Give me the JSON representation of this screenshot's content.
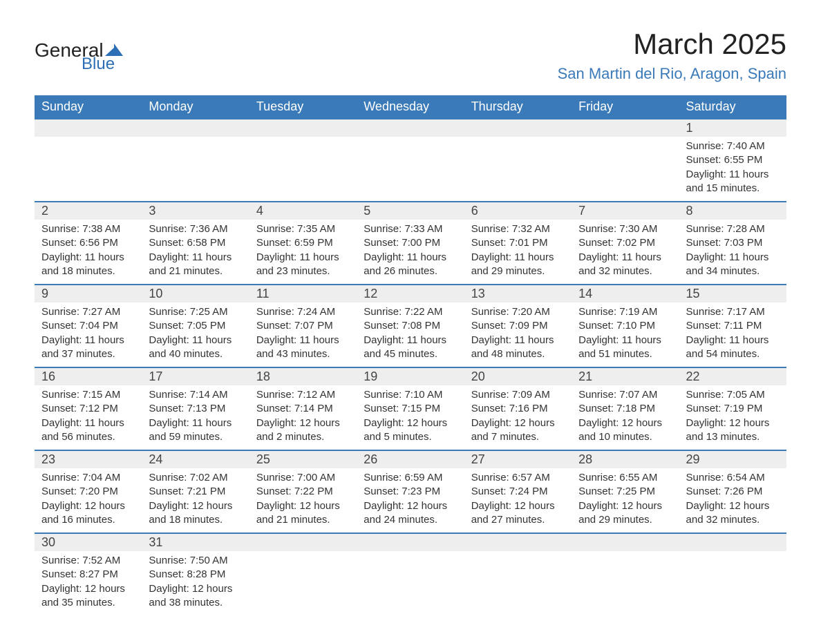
{
  "logo": {
    "word1": "General",
    "word2": "Blue",
    "shape_color": "#2d6fb5"
  },
  "title": "March 2025",
  "location": "San Martin del Rio, Aragon, Spain",
  "colors": {
    "header_bg": "#3a7ab8",
    "header_fg": "#ffffff",
    "daynum_bg": "#eeeeee",
    "row_divider": "#3a7ab8",
    "text": "#333333",
    "location_fg": "#3a7ab8"
  },
  "weekdays": [
    "Sunday",
    "Monday",
    "Tuesday",
    "Wednesday",
    "Thursday",
    "Friday",
    "Saturday"
  ],
  "weeks": [
    [
      null,
      null,
      null,
      null,
      null,
      null,
      {
        "n": "1",
        "sr": "Sunrise: 7:40 AM",
        "ss": "Sunset: 6:55 PM",
        "dl": "Daylight: 11 hours and 15 minutes."
      }
    ],
    [
      {
        "n": "2",
        "sr": "Sunrise: 7:38 AM",
        "ss": "Sunset: 6:56 PM",
        "dl": "Daylight: 11 hours and 18 minutes."
      },
      {
        "n": "3",
        "sr": "Sunrise: 7:36 AM",
        "ss": "Sunset: 6:58 PM",
        "dl": "Daylight: 11 hours and 21 minutes."
      },
      {
        "n": "4",
        "sr": "Sunrise: 7:35 AM",
        "ss": "Sunset: 6:59 PM",
        "dl": "Daylight: 11 hours and 23 minutes."
      },
      {
        "n": "5",
        "sr": "Sunrise: 7:33 AM",
        "ss": "Sunset: 7:00 PM",
        "dl": "Daylight: 11 hours and 26 minutes."
      },
      {
        "n": "6",
        "sr": "Sunrise: 7:32 AM",
        "ss": "Sunset: 7:01 PM",
        "dl": "Daylight: 11 hours and 29 minutes."
      },
      {
        "n": "7",
        "sr": "Sunrise: 7:30 AM",
        "ss": "Sunset: 7:02 PM",
        "dl": "Daylight: 11 hours and 32 minutes."
      },
      {
        "n": "8",
        "sr": "Sunrise: 7:28 AM",
        "ss": "Sunset: 7:03 PM",
        "dl": "Daylight: 11 hours and 34 minutes."
      }
    ],
    [
      {
        "n": "9",
        "sr": "Sunrise: 7:27 AM",
        "ss": "Sunset: 7:04 PM",
        "dl": "Daylight: 11 hours and 37 minutes."
      },
      {
        "n": "10",
        "sr": "Sunrise: 7:25 AM",
        "ss": "Sunset: 7:05 PM",
        "dl": "Daylight: 11 hours and 40 minutes."
      },
      {
        "n": "11",
        "sr": "Sunrise: 7:24 AM",
        "ss": "Sunset: 7:07 PM",
        "dl": "Daylight: 11 hours and 43 minutes."
      },
      {
        "n": "12",
        "sr": "Sunrise: 7:22 AM",
        "ss": "Sunset: 7:08 PM",
        "dl": "Daylight: 11 hours and 45 minutes."
      },
      {
        "n": "13",
        "sr": "Sunrise: 7:20 AM",
        "ss": "Sunset: 7:09 PM",
        "dl": "Daylight: 11 hours and 48 minutes."
      },
      {
        "n": "14",
        "sr": "Sunrise: 7:19 AM",
        "ss": "Sunset: 7:10 PM",
        "dl": "Daylight: 11 hours and 51 minutes."
      },
      {
        "n": "15",
        "sr": "Sunrise: 7:17 AM",
        "ss": "Sunset: 7:11 PM",
        "dl": "Daylight: 11 hours and 54 minutes."
      }
    ],
    [
      {
        "n": "16",
        "sr": "Sunrise: 7:15 AM",
        "ss": "Sunset: 7:12 PM",
        "dl": "Daylight: 11 hours and 56 minutes."
      },
      {
        "n": "17",
        "sr": "Sunrise: 7:14 AM",
        "ss": "Sunset: 7:13 PM",
        "dl": "Daylight: 11 hours and 59 minutes."
      },
      {
        "n": "18",
        "sr": "Sunrise: 7:12 AM",
        "ss": "Sunset: 7:14 PM",
        "dl": "Daylight: 12 hours and 2 minutes."
      },
      {
        "n": "19",
        "sr": "Sunrise: 7:10 AM",
        "ss": "Sunset: 7:15 PM",
        "dl": "Daylight: 12 hours and 5 minutes."
      },
      {
        "n": "20",
        "sr": "Sunrise: 7:09 AM",
        "ss": "Sunset: 7:16 PM",
        "dl": "Daylight: 12 hours and 7 minutes."
      },
      {
        "n": "21",
        "sr": "Sunrise: 7:07 AM",
        "ss": "Sunset: 7:18 PM",
        "dl": "Daylight: 12 hours and 10 minutes."
      },
      {
        "n": "22",
        "sr": "Sunrise: 7:05 AM",
        "ss": "Sunset: 7:19 PM",
        "dl": "Daylight: 12 hours and 13 minutes."
      }
    ],
    [
      {
        "n": "23",
        "sr": "Sunrise: 7:04 AM",
        "ss": "Sunset: 7:20 PM",
        "dl": "Daylight: 12 hours and 16 minutes."
      },
      {
        "n": "24",
        "sr": "Sunrise: 7:02 AM",
        "ss": "Sunset: 7:21 PM",
        "dl": "Daylight: 12 hours and 18 minutes."
      },
      {
        "n": "25",
        "sr": "Sunrise: 7:00 AM",
        "ss": "Sunset: 7:22 PM",
        "dl": "Daylight: 12 hours and 21 minutes."
      },
      {
        "n": "26",
        "sr": "Sunrise: 6:59 AM",
        "ss": "Sunset: 7:23 PM",
        "dl": "Daylight: 12 hours and 24 minutes."
      },
      {
        "n": "27",
        "sr": "Sunrise: 6:57 AM",
        "ss": "Sunset: 7:24 PM",
        "dl": "Daylight: 12 hours and 27 minutes."
      },
      {
        "n": "28",
        "sr": "Sunrise: 6:55 AM",
        "ss": "Sunset: 7:25 PM",
        "dl": "Daylight: 12 hours and 29 minutes."
      },
      {
        "n": "29",
        "sr": "Sunrise: 6:54 AM",
        "ss": "Sunset: 7:26 PM",
        "dl": "Daylight: 12 hours and 32 minutes."
      }
    ],
    [
      {
        "n": "30",
        "sr": "Sunrise: 7:52 AM",
        "ss": "Sunset: 8:27 PM",
        "dl": "Daylight: 12 hours and 35 minutes."
      },
      {
        "n": "31",
        "sr": "Sunrise: 7:50 AM",
        "ss": "Sunset: 8:28 PM",
        "dl": "Daylight: 12 hours and 38 minutes."
      },
      null,
      null,
      null,
      null,
      null
    ]
  ]
}
